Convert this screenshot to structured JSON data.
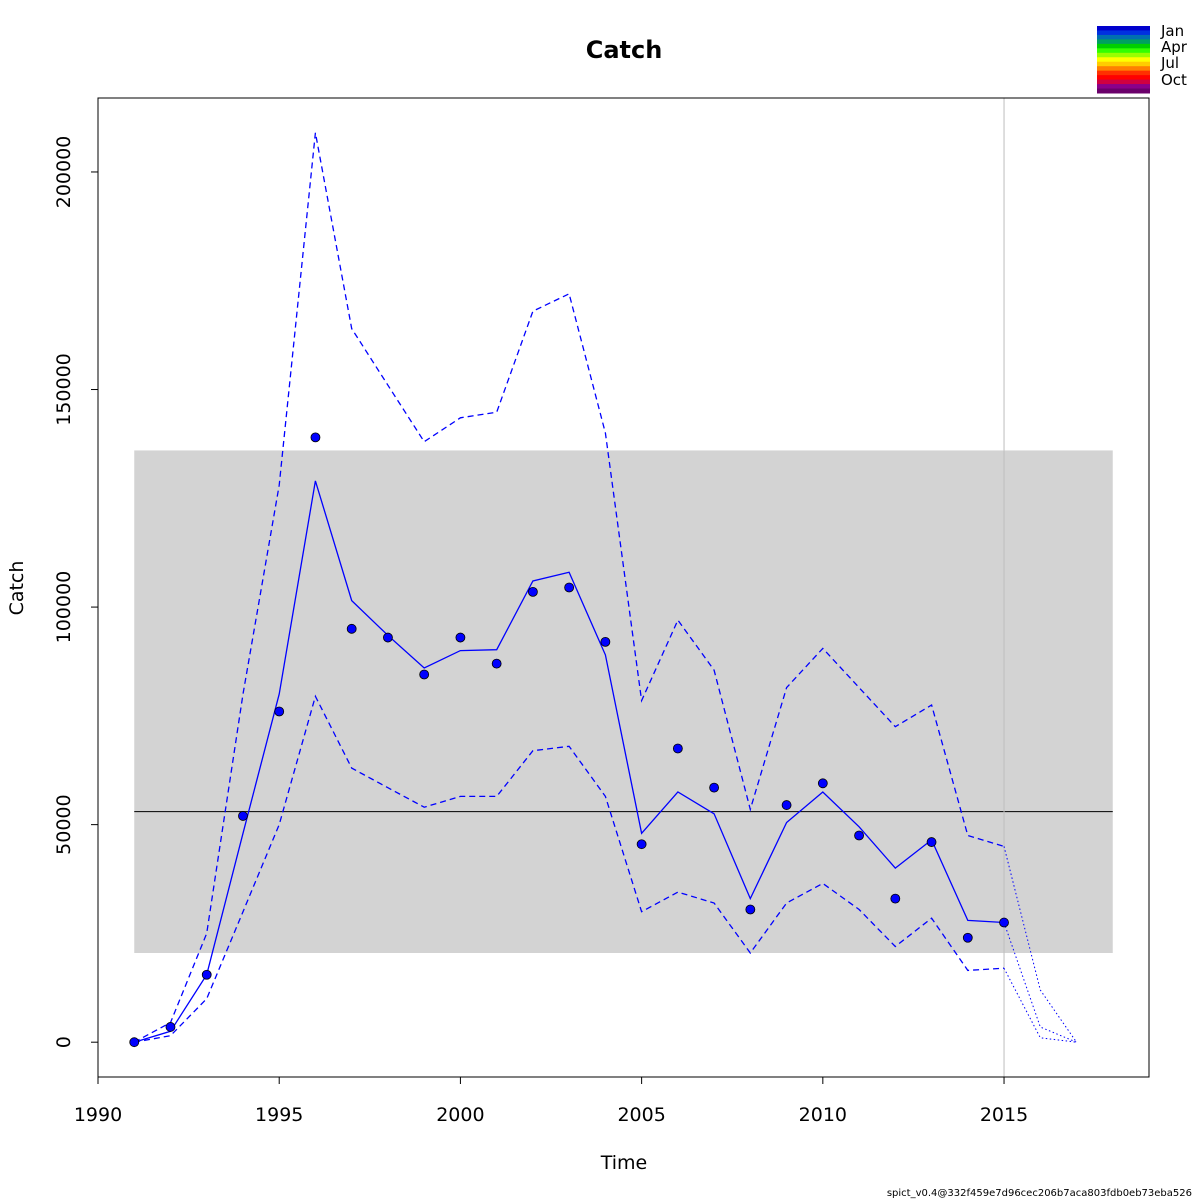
{
  "chart_data": {
    "type": "line",
    "title": "Catch",
    "xlabel": "Time",
    "ylabel": "Catch",
    "xlim": [
      1990,
      2019
    ],
    "ylim": [
      -8000,
      217000
    ],
    "x_ticks": [
      "1990",
      "1995",
      "2000",
      "2005",
      "2010",
      "2015"
    ],
    "y_ticks": [
      "0",
      "50000",
      "100000",
      "150000",
      "200000"
    ],
    "band": {
      "x_range": [
        1991,
        2018
      ],
      "y_range": [
        20500,
        136000
      ],
      "color": "#d3d3d3"
    },
    "reference_line": {
      "y": 53000,
      "x_range": [
        1991,
        2018
      ],
      "color": "#000000"
    },
    "vertical_line": {
      "x": 2015,
      "color": "#bebebe"
    },
    "series": [
      {
        "role": "fitted",
        "style": "solid",
        "color": "#0000ff",
        "x": [
          1991,
          1992,
          1993,
          1994,
          1995,
          1996,
          1997,
          1998,
          1999,
          2000,
          2001,
          2002,
          2003,
          2004,
          2005,
          2006,
          2007,
          2008,
          2009,
          2010,
          2011,
          2012,
          2013,
          2014,
          2015
        ],
        "y": [
          0,
          2500,
          15500,
          48000,
          80000,
          129000,
          101500,
          93500,
          86000,
          90000,
          90200,
          106000,
          108000,
          89000,
          48000,
          57500,
          52500,
          33000,
          50500,
          57500,
          49500,
          40000,
          46500,
          28000,
          27500
        ]
      },
      {
        "role": "upper-ci",
        "style": "dashed",
        "color": "#0000ff",
        "x": [
          1991,
          1992,
          1993,
          1994,
          1995,
          1996,
          1997,
          1998,
          1999,
          2000,
          2001,
          2002,
          2003,
          2004,
          2005,
          2006,
          2007,
          2008,
          2009,
          2010,
          2011,
          2012,
          2013,
          2014,
          2015
        ],
        "y": [
          0,
          4500,
          25000,
          80000,
          128000,
          209000,
          164000,
          151000,
          138000,
          143500,
          144800,
          168000,
          172000,
          140000,
          78500,
          97000,
          85500,
          53500,
          81500,
          90500,
          81500,
          72500,
          77500,
          47500,
          45000
        ]
      },
      {
        "role": "lower-ci",
        "style": "dashed",
        "color": "#0000ff",
        "x": [
          1991,
          1992,
          1993,
          1994,
          1995,
          1996,
          1997,
          1998,
          1999,
          2000,
          2001,
          2002,
          2003,
          2004,
          2005,
          2006,
          2007,
          2008,
          2009,
          2010,
          2011,
          2012,
          2013,
          2014,
          2015
        ],
        "y": [
          0,
          1500,
          10000,
          30000,
          50000,
          79500,
          63000,
          58500,
          54000,
          56500,
          56500,
          67000,
          68000,
          56500,
          30000,
          34500,
          32000,
          20500,
          32000,
          36500,
          30500,
          22000,
          28500,
          16500,
          17000
        ]
      },
      {
        "role": "forecast",
        "style": "dotted",
        "color": "#0000ff",
        "x": [
          2015,
          2016,
          2017
        ],
        "y": [
          27500,
          3500,
          0
        ]
      },
      {
        "role": "forecast-upper",
        "style": "dotted",
        "color": "#0000ff",
        "x": [
          2015,
          2016,
          2017
        ],
        "y": [
          45000,
          12000,
          0
        ]
      },
      {
        "role": "forecast-lower",
        "style": "dotted",
        "color": "#0000ff",
        "x": [
          2015,
          2016,
          2017
        ],
        "y": [
          17000,
          1000,
          0
        ]
      }
    ],
    "observations": {
      "color": "#0000ff",
      "x": [
        1991,
        1992,
        1993,
        1994,
        1995,
        1996,
        1997,
        1998,
        1999,
        2000,
        2001,
        2002,
        2003,
        2004,
        2005,
        2006,
        2007,
        2008,
        2009,
        2010,
        2011,
        2012,
        2013,
        2014,
        2015
      ],
      "y": [
        0,
        3500,
        15500,
        52000,
        76000,
        139000,
        95000,
        93000,
        84500,
        93000,
        87000,
        103500,
        104500,
        92000,
        45500,
        67500,
        58500,
        30500,
        54500,
        59500,
        47500,
        33000,
        46000,
        24000,
        27500
      ]
    },
    "legend": {
      "position": "top-right",
      "labels": [
        "Jan",
        "Apr",
        "Jul",
        "Oct"
      ],
      "colors": [
        "#0000cd",
        "#0030e0",
        "#006fb0",
        "#00a060",
        "#00d000",
        "#33ff00",
        "#99ff00",
        "#ffff00",
        "#ffcc00",
        "#ff8000",
        "#ff3000",
        "#ff0000",
        "#d00040",
        "#8a008a",
        "#6a006a"
      ]
    },
    "footer": "spict_v0.4@332f459e7d96cec206b7aca803fdb0eb73eba526"
  }
}
